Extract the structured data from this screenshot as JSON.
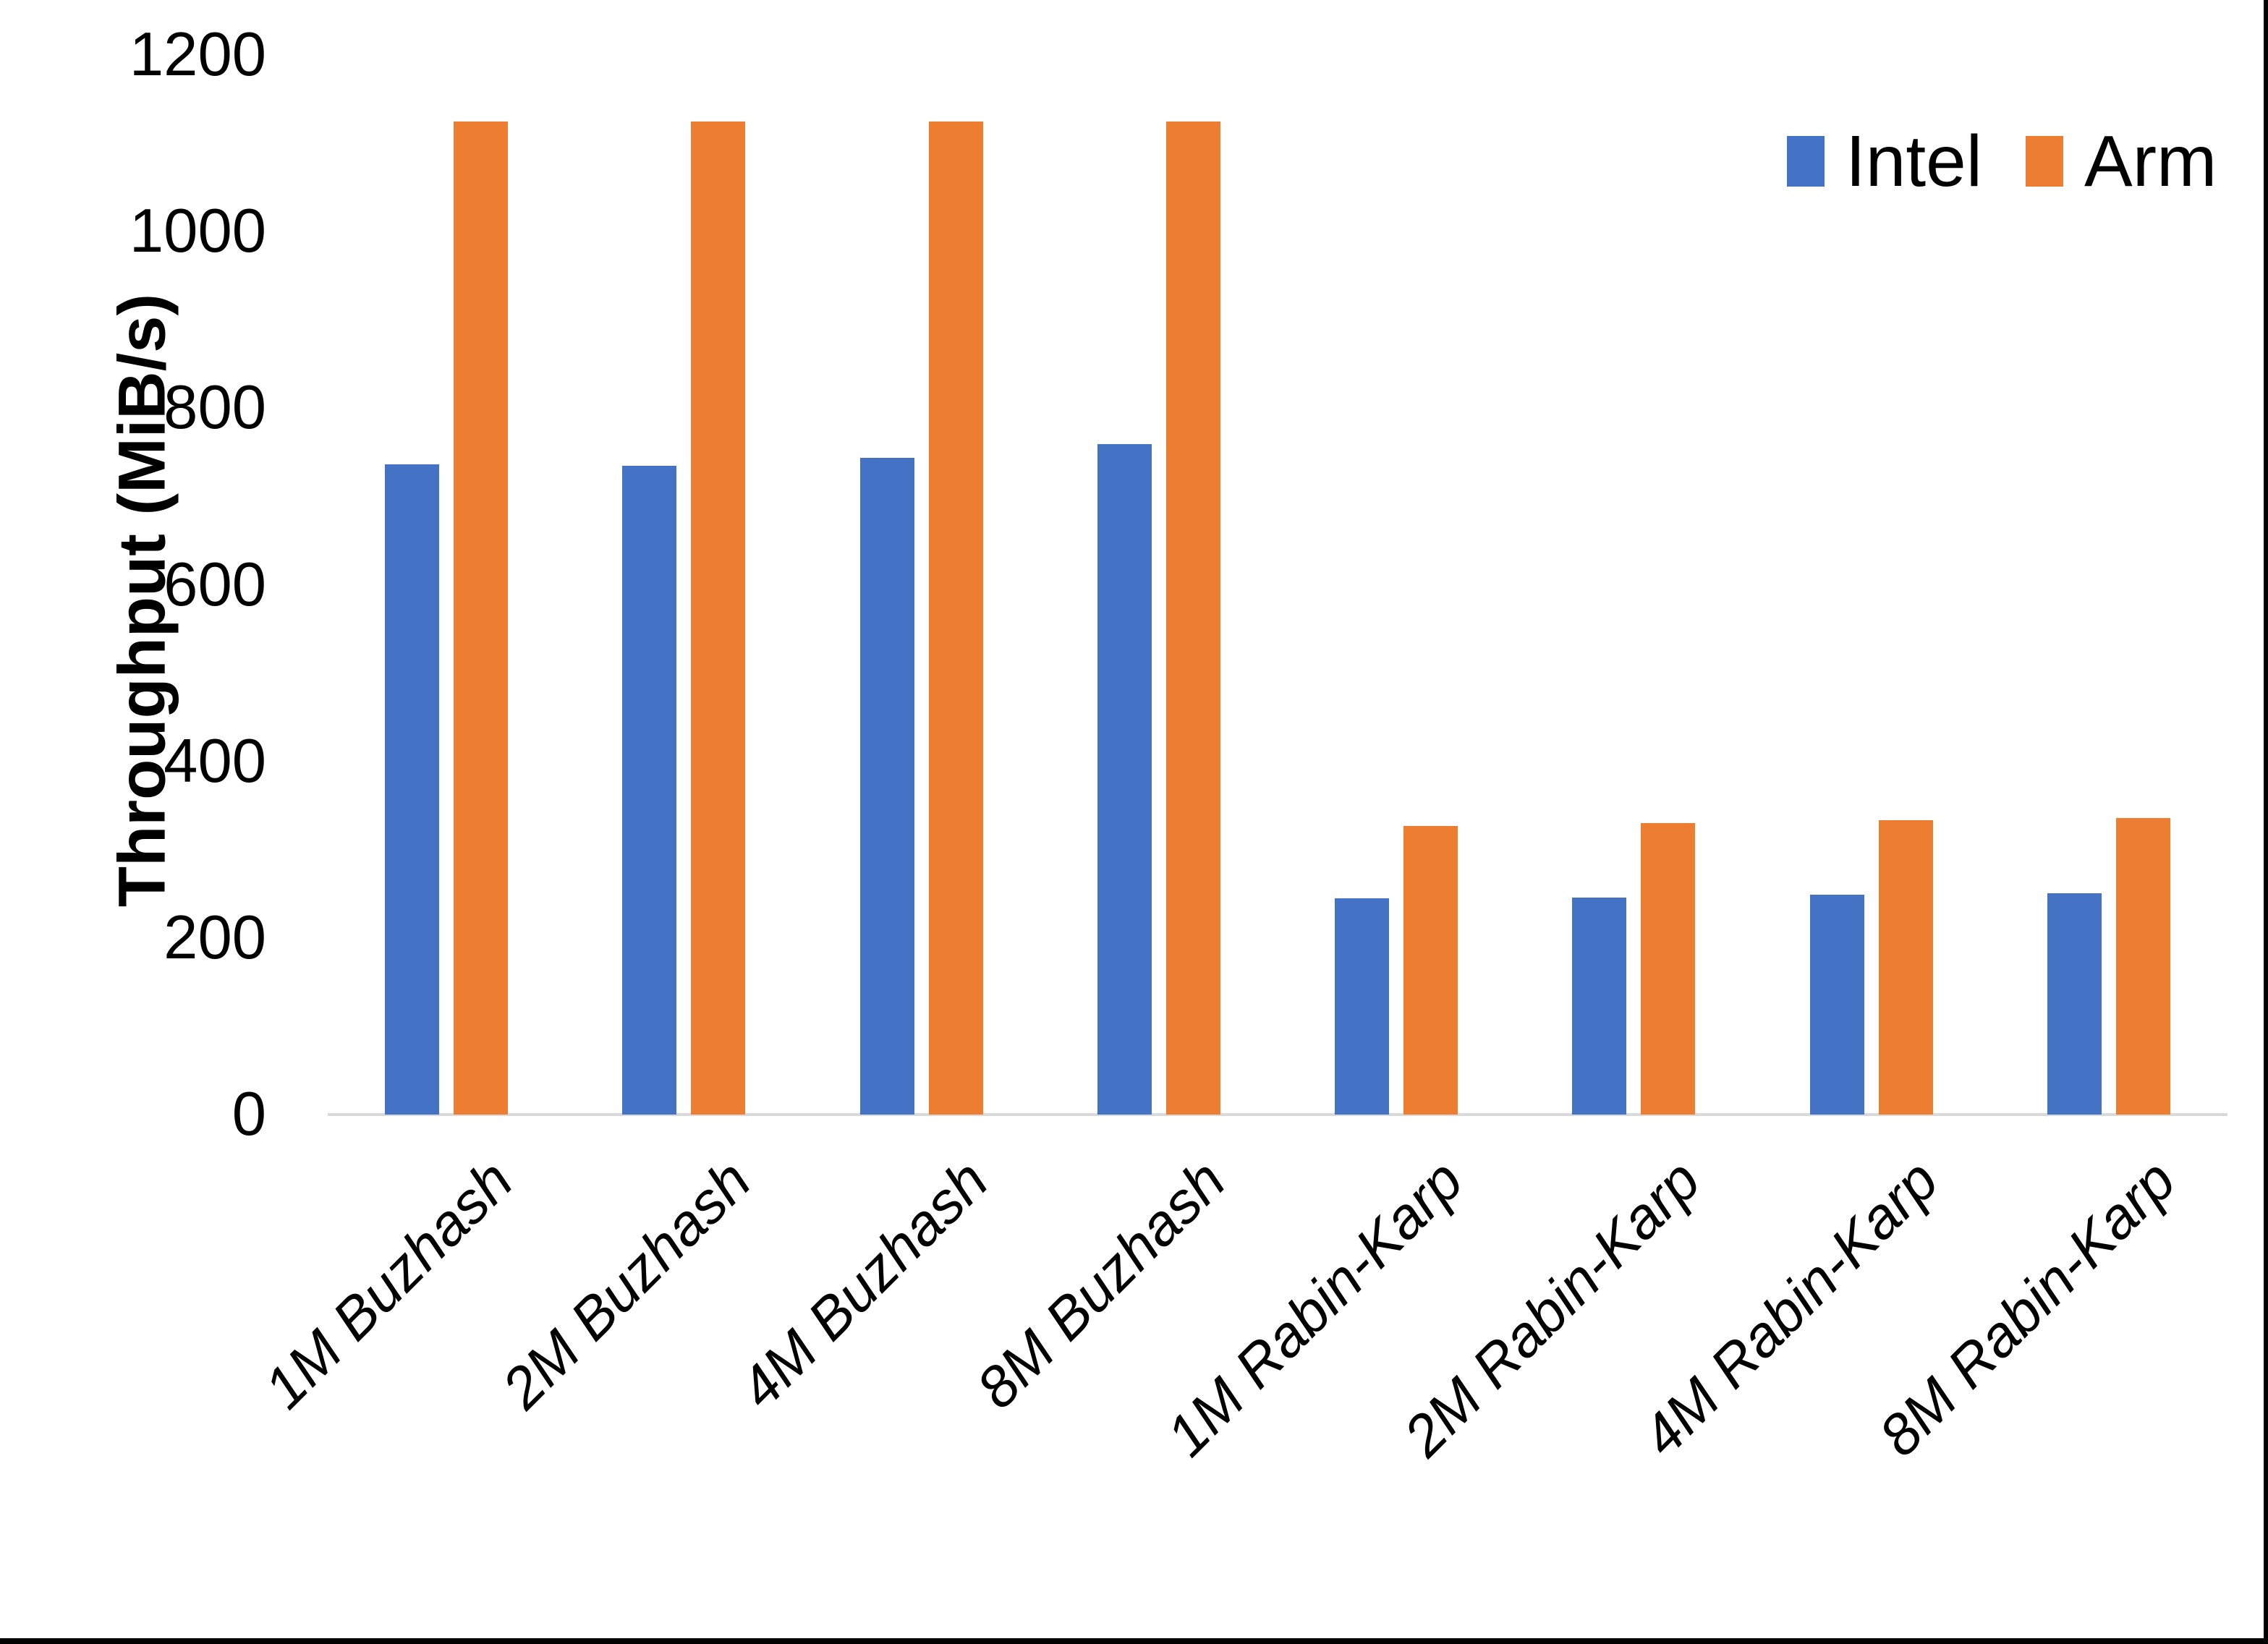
{
  "chart_data": {
    "type": "bar",
    "categories": [
      "1M Buzhash",
      "2M Buzhash",
      "4M Buzhash",
      "8M Buzhash",
      "1M Rabin-Karp",
      "2M Rabin-Karp",
      "4M Rabin-Karp",
      "8M Rabin-Karp"
    ],
    "series": [
      {
        "name": "Intel",
        "color": "#4472C4",
        "values": [
          736,
          735,
          744,
          759,
          245,
          246,
          249,
          251
        ]
      },
      {
        "name": "Arm",
        "color": "#ED7D31",
        "values": [
          1125,
          1125,
          1125,
          1125,
          327,
          330,
          333,
          336
        ]
      }
    ],
    "title": "",
    "xlabel": "",
    "ylabel": "Throughput (MiB/s)",
    "ylim": [
      0,
      1200
    ],
    "yticks": [
      0,
      200,
      400,
      600,
      800,
      1000,
      1200
    ],
    "legend": {
      "position": "top-right",
      "entries": [
        "Intel",
        "Arm"
      ]
    },
    "grid": false,
    "axis_line_color": "#D9D9D9",
    "page_border_color": "#000000"
  }
}
